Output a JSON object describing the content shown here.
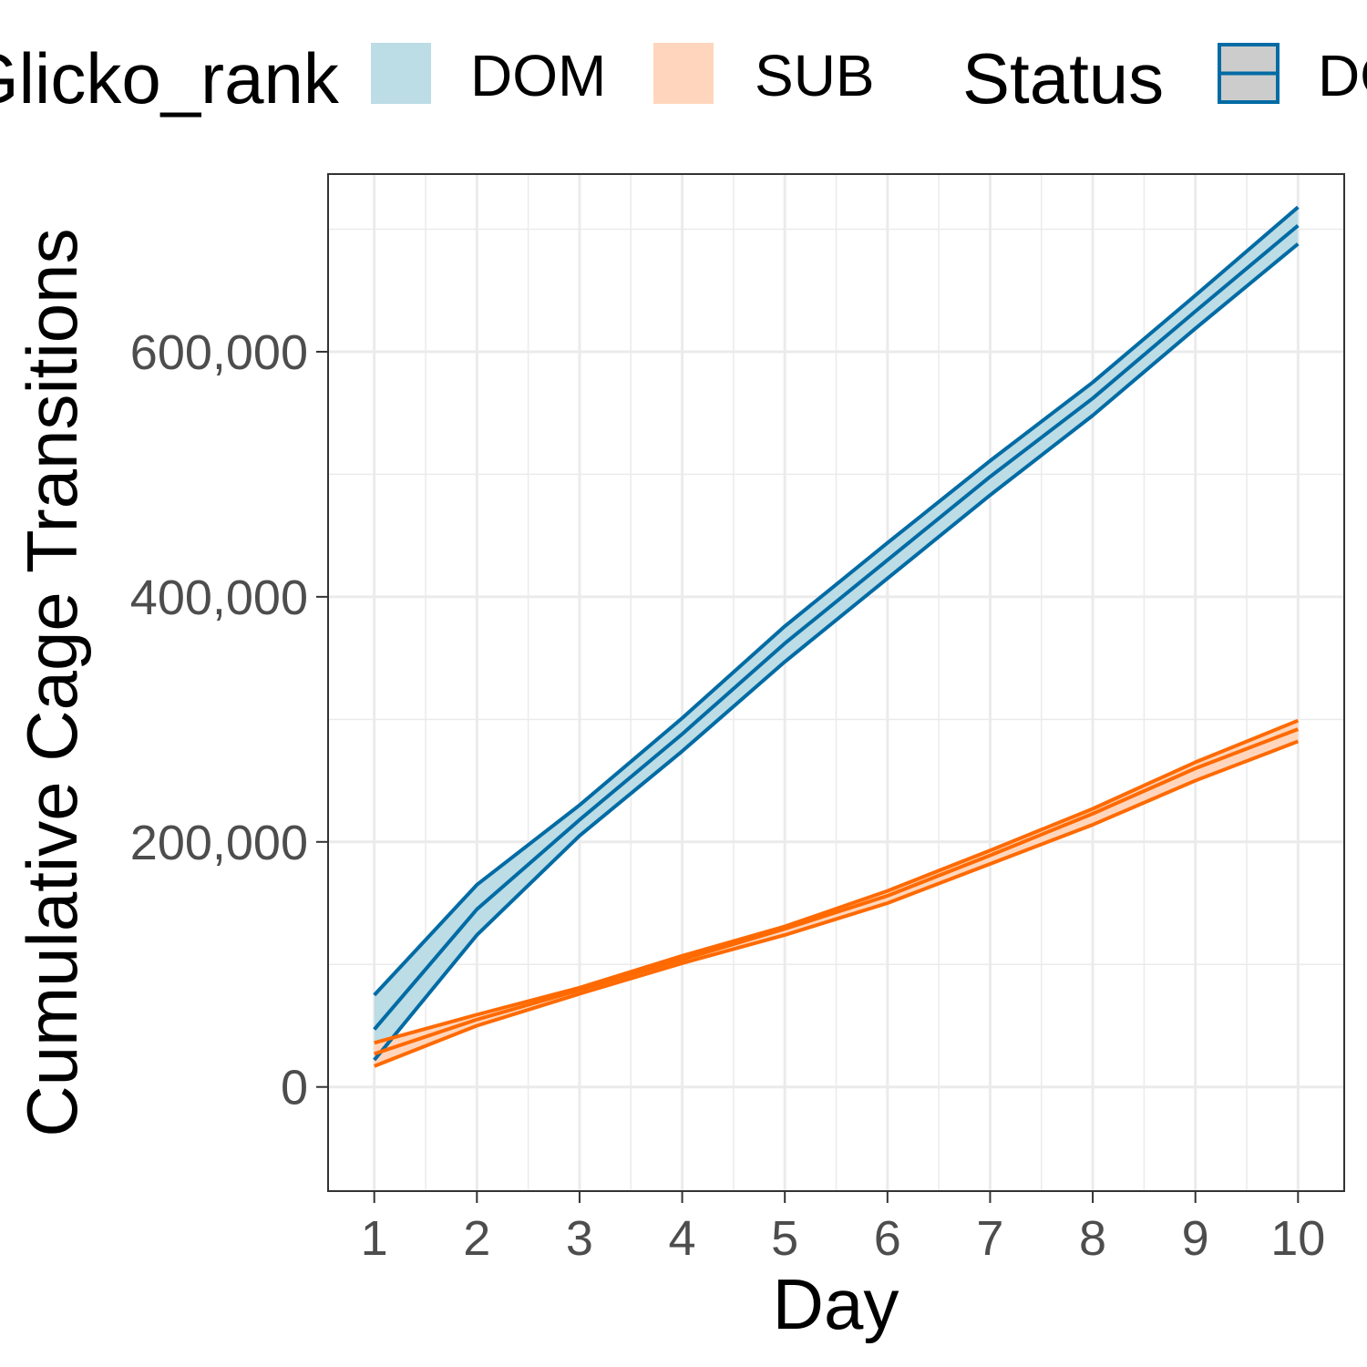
{
  "chart_data": {
    "type": "line",
    "xlabel": "Day",
    "ylabel": "Cumulative Cage Transitions",
    "x": [
      1,
      2,
      3,
      4,
      5,
      6,
      7,
      8,
      9,
      10
    ],
    "xlim": [
      0.55,
      10.45
    ],
    "ylim": [
      -85000,
      745000
    ],
    "x_ticks": [
      1,
      2,
      3,
      4,
      5,
      6,
      7,
      8,
      9,
      10
    ],
    "x_tick_labels": [
      "1",
      "2",
      "3",
      "4",
      "5",
      "6",
      "7",
      "8",
      "9",
      "10"
    ],
    "y_ticks": [
      0,
      200000,
      400000,
      600000
    ],
    "y_tick_labels": [
      "0",
      "200,000",
      "400,000",
      "600,000"
    ],
    "grid": true,
    "legend_position": "top",
    "legends": [
      {
        "title": "Glicko_rank",
        "entries": [
          {
            "label": "DOM",
            "color": "#bcdce6"
          },
          {
            "label": "SUB",
            "color": "#ffd6bd"
          }
        ]
      },
      {
        "title": "Status",
        "entries": [
          {
            "label": "DOM",
            "color": "#006ba4"
          }
        ]
      }
    ],
    "series": [
      {
        "name": "DOM",
        "line_color": "#006ba4",
        "fill_color": "#bcdce6",
        "values": [
          47000,
          145000,
          218000,
          288000,
          362000,
          430000,
          498000,
          562000,
          633000,
          703000
        ],
        "lower": [
          22000,
          124000,
          205000,
          274000,
          347000,
          415000,
          483000,
          548000,
          619000,
          688000
        ],
        "upper": [
          75000,
          165000,
          230000,
          301000,
          376000,
          444000,
          511000,
          575000,
          646000,
          718000
        ]
      },
      {
        "name": "SUB",
        "line_color": "#ff6a00",
        "fill_color": "#ffd6bd",
        "values": [
          27000,
          55000,
          79000,
          104000,
          129000,
          156000,
          189000,
          223000,
          260000,
          292000
        ],
        "lower": [
          17000,
          50000,
          76000,
          101000,
          124000,
          150000,
          182000,
          214000,
          250000,
          282000
        ],
        "upper": [
          36000,
          59000,
          81000,
          107000,
          131000,
          160000,
          193000,
          227000,
          265000,
          299000
        ]
      }
    ]
  }
}
